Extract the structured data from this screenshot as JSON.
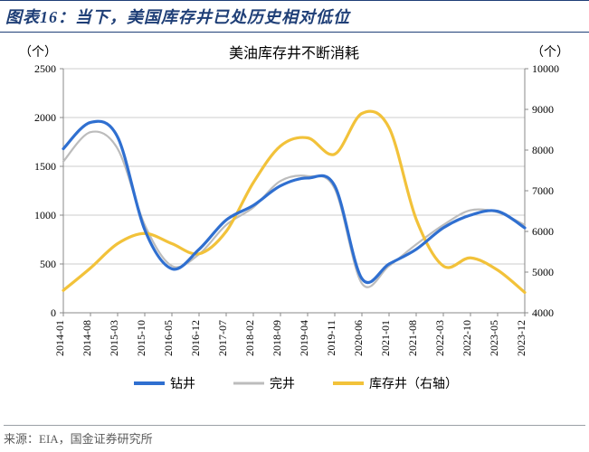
{
  "header": {
    "title": "图表16：当下，美国库存井已处历史相对低位"
  },
  "footer": {
    "text": "来源：EIA，国金证券研究所"
  },
  "chart": {
    "type": "line",
    "subtitle": "美油库存井不断消耗",
    "subtitle_fontsize": 16,
    "subtitle_color": "#000000",
    "y_left_unit": "（个）",
    "y_right_unit": "（个）",
    "unit_fontsize": 14,
    "axis_label_fontsize": 13,
    "tick_fontsize": 12,
    "background_color": "#ffffff",
    "plot_border_color": "#888888",
    "grid_color": "#cccccc",
    "x": {
      "labels": [
        "2014-01",
        "2014-08",
        "2015-03",
        "2015-10",
        "2016-05",
        "2016-12",
        "2017-07",
        "2018-02",
        "2018-09",
        "2019-04",
        "2019-11",
        "2020-06",
        "2021-01",
        "2021-08",
        "2022-03",
        "2022-10",
        "2023-05",
        "2023-12"
      ],
      "rotation": -90
    },
    "y_left": {
      "min": 0,
      "max": 2500,
      "step": 500,
      "ticks": [
        0,
        500,
        1000,
        1500,
        2000,
        2500
      ]
    },
    "y_right": {
      "min": 4000,
      "max": 10000,
      "step": 1000,
      "ticks": [
        4000,
        5000,
        6000,
        7000,
        8000,
        9000,
        10000
      ]
    },
    "legend": {
      "position": "bottom-center",
      "fontsize": 14,
      "items": [
        {
          "key": "drill",
          "label": "钻井",
          "color": "#2f6fd0",
          "width": 4
        },
        {
          "key": "complete",
          "label": "完井",
          "color": "#bcbcbc",
          "width": 3
        },
        {
          "key": "inventory",
          "label": "库存井（右轴）",
          "color": "#f2c23a",
          "width": 4
        }
      ]
    },
    "series": {
      "drill": {
        "axis": "left",
        "color": "#2f6fd0",
        "width": 3.2,
        "values": [
          1680,
          1950,
          1800,
          850,
          450,
          650,
          950,
          1100,
          1300,
          1380,
          1300,
          350,
          500,
          650,
          870,
          1000,
          1040,
          870
        ]
      },
      "complete": {
        "axis": "left",
        "color": "#bcbcbc",
        "width": 2.2,
        "values": [
          1550,
          1850,
          1680,
          900,
          480,
          600,
          900,
          1080,
          1350,
          1400,
          1270,
          300,
          480,
          700,
          900,
          1050,
          1030,
          900
        ]
      },
      "inventory": {
        "axis": "right",
        "color": "#f2c23a",
        "width": 3.2,
        "values": [
          4550,
          5100,
          5700,
          5950,
          5700,
          5450,
          6000,
          7200,
          8100,
          8300,
          7900,
          8900,
          8550,
          6300,
          5150,
          5350,
          5050,
          4500
        ]
      }
    }
  }
}
